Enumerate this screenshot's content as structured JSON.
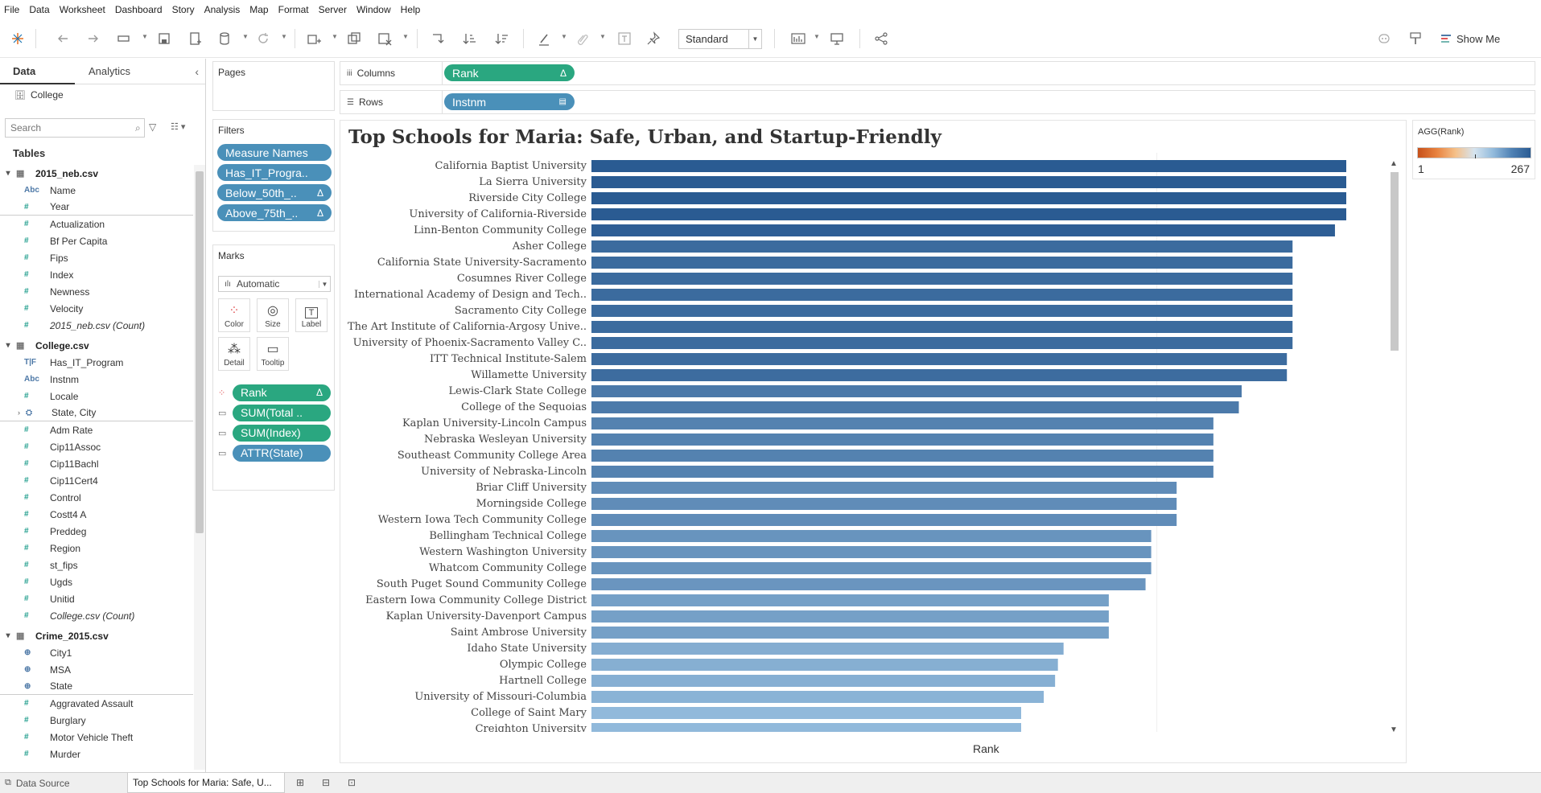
{
  "menu": [
    "File",
    "Data",
    "Worksheet",
    "Dashboard",
    "Story",
    "Analysis",
    "Map",
    "Format",
    "Server",
    "Window",
    "Help"
  ],
  "toolbar": {
    "fit": "Standard",
    "show_me": "Show Me"
  },
  "data_pane": {
    "tab_data": "Data",
    "tab_analytics": "Analytics",
    "data_source": "College",
    "search_placeholder": "Search",
    "tables_heading": "Tables",
    "tables": [
      {
        "name": "2015_neb.csv",
        "fields": [
          {
            "type": "Abc",
            "name": "Name"
          },
          {
            "type": "#",
            "name": "Year",
            "sep": true
          },
          {
            "type": "#",
            "name": "Actualization"
          },
          {
            "type": "#",
            "name": "Bf Per Capita"
          },
          {
            "type": "#",
            "name": "Fips"
          },
          {
            "type": "#",
            "name": "Index"
          },
          {
            "type": "#",
            "name": "Newness"
          },
          {
            "type": "#",
            "name": "Velocity"
          },
          {
            "type": "#",
            "name": "2015_neb.csv (Count)",
            "count": true
          }
        ]
      },
      {
        "name": "College.csv",
        "fields": [
          {
            "type": "T|F",
            "name": "Has_IT_Program"
          },
          {
            "type": "Abc",
            "name": "Instnm"
          },
          {
            "type": "#",
            "name": "Locale"
          },
          {
            "type": "geo",
            "name": "State, City",
            "hier": true,
            "sep": true
          },
          {
            "type": "#",
            "name": "Adm Rate"
          },
          {
            "type": "#",
            "name": "Cip11Assoc"
          },
          {
            "type": "#",
            "name": "Cip11Bachl"
          },
          {
            "type": "#",
            "name": "Cip11Cert4"
          },
          {
            "type": "#",
            "name": "Control"
          },
          {
            "type": "#",
            "name": "Costt4 A"
          },
          {
            "type": "#",
            "name": "Preddeg"
          },
          {
            "type": "#",
            "name": "Region"
          },
          {
            "type": "#",
            "name": "st_fips"
          },
          {
            "type": "#",
            "name": "Ugds"
          },
          {
            "type": "#",
            "name": "Unitid"
          },
          {
            "type": "#",
            "name": "College.csv (Count)",
            "count": true
          }
        ]
      },
      {
        "name": "Crime_2015.csv",
        "fields": [
          {
            "type": "globe",
            "name": "City1"
          },
          {
            "type": "globe",
            "name": "MSA"
          },
          {
            "type": "globe",
            "name": "State",
            "sep": true
          },
          {
            "type": "#",
            "name": "Aggravated Assault"
          },
          {
            "type": "#",
            "name": "Burglary"
          },
          {
            "type": "#",
            "name": "Motor Vehicle Theft"
          },
          {
            "type": "#",
            "name": "Murder"
          }
        ]
      }
    ]
  },
  "pages": {
    "title": "Pages"
  },
  "filters": {
    "title": "Filters",
    "pills": [
      "Measure Names",
      "Has_IT_Progra..",
      "Below_50th_..",
      "Above_75th_.."
    ]
  },
  "marks": {
    "title": "Marks",
    "type": "Automatic",
    "buttons": [
      "Color",
      "Size",
      "Label",
      "Detail",
      "Tooltip"
    ],
    "pills": [
      "Rank",
      "SUM(Total ..",
      "SUM(Index)",
      "ATTR(State)"
    ]
  },
  "shelves": {
    "columns_label": "Columns",
    "columns_pill": "Rank",
    "rows_label": "Rows",
    "rows_pill": "Instnm"
  },
  "view": {
    "title": "Top Schools for Maria: Safe, Urban, and Startup-Friendly",
    "axis_title": "Rank"
  },
  "legend": {
    "title": "AGG(Rank)",
    "min": "1",
    "max": "267",
    "color_low": "#c6501a",
    "color_high": "#2a5b92"
  },
  "status": {
    "data_source_tab": "Data Source",
    "sheet_tab": "Top Schools for Maria: Safe, U..."
  },
  "chart_data": {
    "type": "bar",
    "orientation": "horizontal",
    "categories": [
      "California Baptist University",
      "La Sierra University",
      "Riverside City College",
      "University of California-Riverside",
      "Linn-Benton Community College",
      "Asher College",
      "California State University-Sacramento",
      "Cosumnes River College",
      "International Academy of Design and Tech..",
      "Sacramento City College",
      "The Art Institute of California-Argosy Unive..",
      "University of Phoenix-Sacramento Valley C..",
      "ITT Technical Institute-Salem",
      "Willamette University",
      "Lewis-Clark State College",
      "College of the Sequoias",
      "Kaplan University-Lincoln Campus",
      "Nebraska Wesleyan University",
      "Southeast Community College Area",
      "University of Nebraska-Lincoln",
      "Briar Cliff University",
      "Morningside College",
      "Western Iowa Tech Community College",
      "Bellingham Technical College",
      "Western Washington University",
      "Whatcom Community College",
      "South Puget Sound Community College",
      "Eastern Iowa Community College District",
      "Kaplan University-Davenport Campus",
      "Saint Ambrose University",
      "Idaho State University",
      "Olympic College",
      "Hartnell College",
      "University of Missouri-Columbia",
      "College of Saint Mary",
      "Creighton University"
    ],
    "values": [
      267,
      267,
      267,
      267,
      263,
      248,
      248,
      248,
      248,
      248,
      248,
      248,
      246,
      246,
      230,
      229,
      220,
      220,
      220,
      220,
      207,
      207,
      207,
      198,
      198,
      198,
      196,
      183,
      183,
      183,
      167,
      165,
      164,
      160,
      152,
      152
    ],
    "xlabel": "Rank",
    "ylabel": "",
    "xlim": [
      0,
      267
    ],
    "color_scale": "AGG(Rank) diverging orange-blue",
    "grid": false
  }
}
